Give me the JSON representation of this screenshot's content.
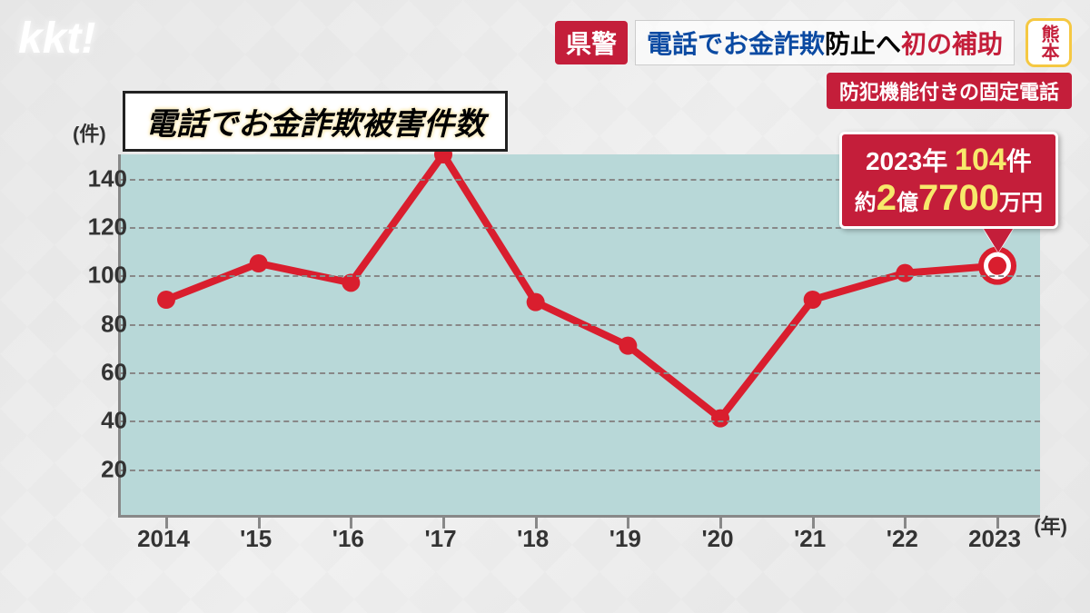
{
  "logo": "kkt!",
  "header": {
    "prefecture_tag": "県警",
    "main_blue": "電話でお金詐欺",
    "main_black": "防止へ",
    "main_red": "初の補助",
    "kumamoto": "熊本",
    "subtitle": "防犯機能付きの固定電話"
  },
  "chart": {
    "type": "line",
    "title": "電話でお金詐欺被害件数",
    "y_unit": "(件)",
    "x_unit": "(年)",
    "ylim": [
      0,
      150
    ],
    "ytick_step": 20,
    "y_ticks": [
      20,
      40,
      60,
      80,
      100,
      120,
      140
    ],
    "x_labels": [
      "2014",
      "'15",
      "'16",
      "'17",
      "'18",
      "'19",
      "'20",
      "'21",
      "'22",
      "2023"
    ],
    "values": [
      90,
      105,
      97,
      150,
      89,
      71,
      41,
      90,
      101,
      104
    ],
    "line_color": "#d91e2e",
    "line_width": 8,
    "marker_radius": 10,
    "marker_fill": "#d91e2e",
    "plot_bg": "#b8d8d8",
    "grid_color": "#888888",
    "last_marker": {
      "outer": "#d91e2e",
      "inner": "#ffffff",
      "outer_r": 18,
      "inner_r": 10
    }
  },
  "callout": {
    "year": "2023",
    "year_suffix": "年",
    "count": "104",
    "count_suffix": "件",
    "amount_prefix": "約",
    "amount_big1": "2",
    "amount_unit1": "億",
    "amount_big2": "7700",
    "amount_unit2": "万円"
  },
  "colors": {
    "red": "#c41e3a",
    "yellow": "#f7e96b",
    "blue": "#0b4aa2",
    "gold_border": "#f5c842"
  }
}
